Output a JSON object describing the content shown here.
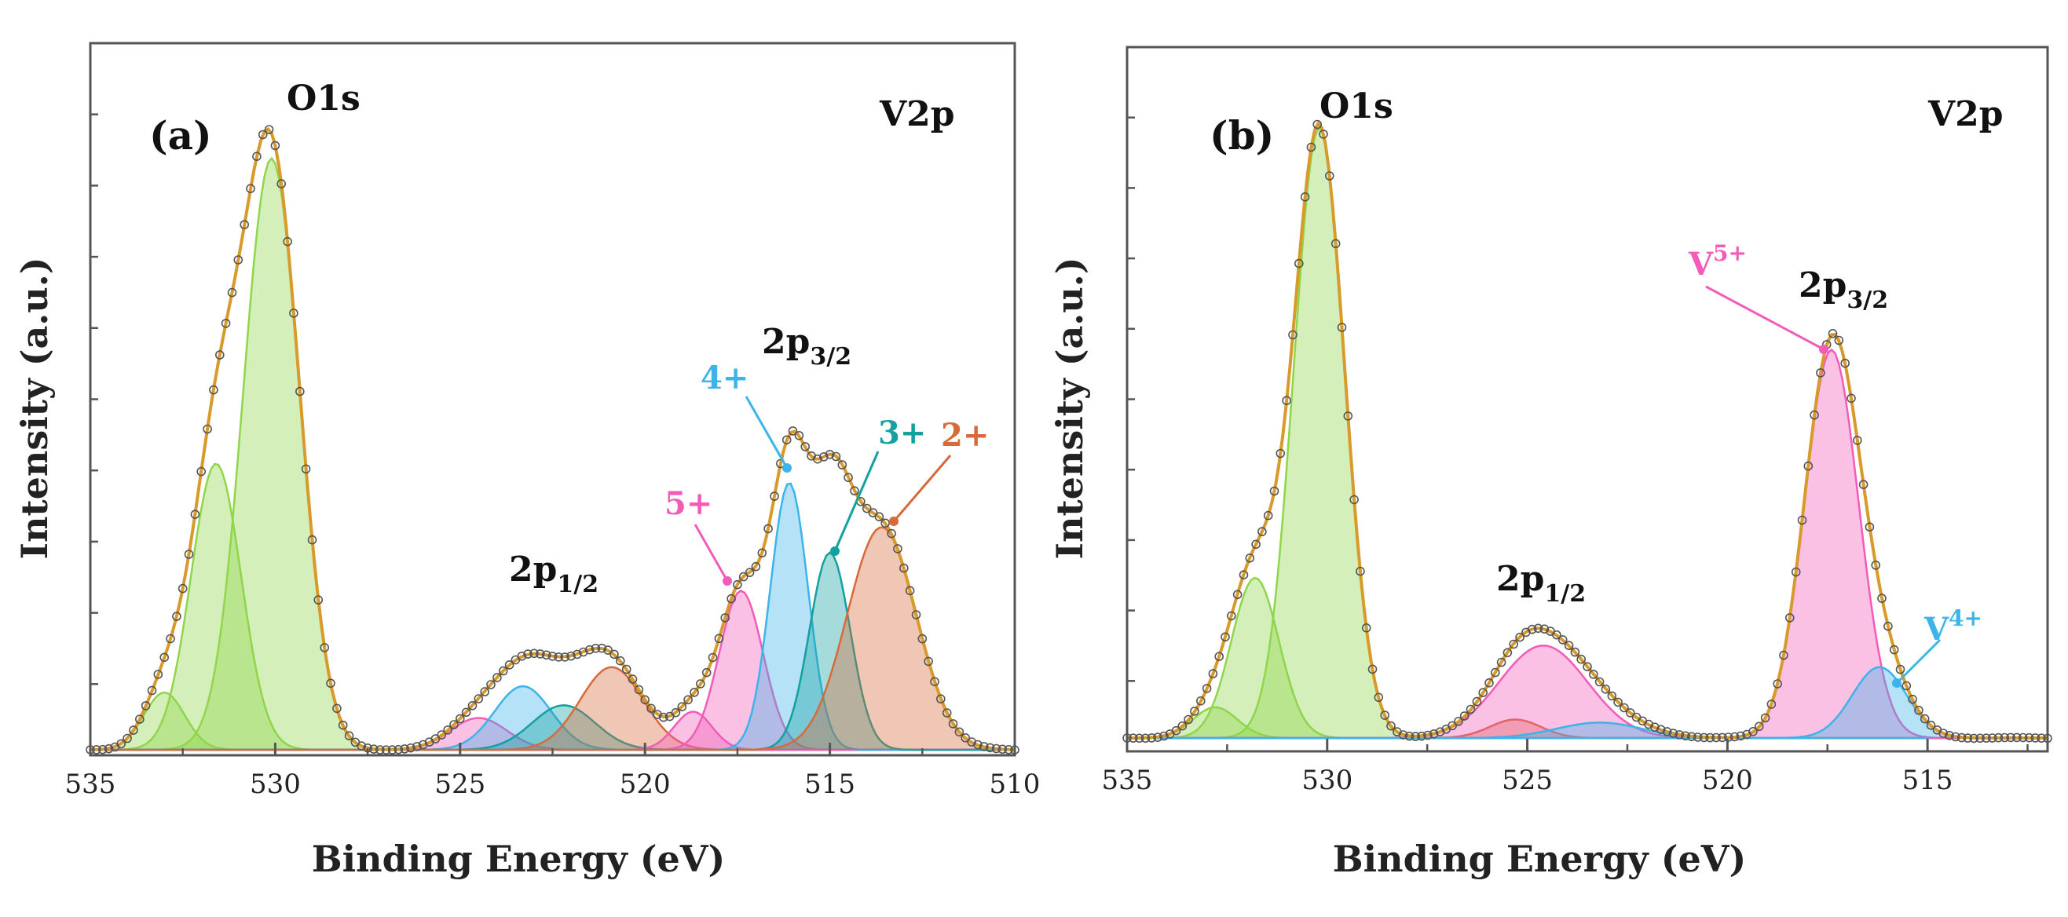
{
  "colors": {
    "o1s": "#8fd64a",
    "v5": "#f25cb8",
    "v4": "#3cb4ea",
    "v3": "#12a0a0",
    "v2": "#d86a3a",
    "envelope": "#d89a2a",
    "points": "#555555"
  },
  "chart_data": [
    {
      "type": "line",
      "panel_label": "(a)",
      "region_labels": {
        "o1s": "O1s",
        "v2p": "V2p"
      },
      "xlabel": "Binding Energy (eV)",
      "ylabel": "Intensity (a.u.)",
      "xlim": [
        535,
        510
      ],
      "ylim": [
        0,
        100
      ],
      "x_ticks": [
        "535",
        "530",
        "525",
        "520",
        "515",
        "510"
      ],
      "peak_labels": {
        "p32_main": "2p",
        "p32_sub": "3/2",
        "p12_main": "2p",
        "p12_sub": "1/2"
      },
      "ox_labels": {
        "v4": "4+",
        "v3": "3+",
        "v2": "2+",
        "v5": "5+"
      },
      "series": [
        {
          "name": "O1s a",
          "color_key": "o1s",
          "center": 533.0,
          "height": 9,
          "fwhm": 1.3
        },
        {
          "name": "O1s b",
          "color_key": "o1s",
          "center": 531.6,
          "height": 45,
          "fwhm": 1.6
        },
        {
          "name": "O1s c",
          "color_key": "o1s",
          "center": 530.1,
          "height": 93,
          "fwhm": 1.8
        },
        {
          "name": "V5+ 2p1/2",
          "color_key": "v5",
          "center": 524.5,
          "height": 5,
          "fwhm": 1.8
        },
        {
          "name": "V4+ 2p1/2",
          "color_key": "v4",
          "center": 523.3,
          "height": 10,
          "fwhm": 1.8
        },
        {
          "name": "V3+ 2p1/2",
          "color_key": "v3",
          "center": 522.2,
          "height": 7,
          "fwhm": 2.0
        },
        {
          "name": "V2+ 2p1/2",
          "color_key": "v2",
          "center": 520.9,
          "height": 13,
          "fwhm": 2.0
        },
        {
          "name": "V5+ extra",
          "color_key": "v5",
          "center": 518.7,
          "height": 6,
          "fwhm": 1.2
        },
        {
          "name": "V5+ 2p3/2",
          "color_key": "v5",
          "center": 517.4,
          "height": 25,
          "fwhm": 1.4
        },
        {
          "name": "V4+ 2p3/2",
          "color_key": "v4",
          "center": 516.1,
          "height": 42,
          "fwhm": 1.2
        },
        {
          "name": "V3+ 2p3/2",
          "color_key": "v3",
          "center": 515.0,
          "height": 31,
          "fwhm": 1.3
        },
        {
          "name": "V2+ 2p3/2",
          "color_key": "v2",
          "center": 513.6,
          "height": 35,
          "fwhm": 2.2
        }
      ]
    },
    {
      "type": "line",
      "panel_label": "(b)",
      "region_labels": {
        "o1s": "O1s",
        "v2p": "V2p"
      },
      "xlabel": "Binding Energy (eV)",
      "ylabel": "Intensity (a.u.)",
      "xlim": [
        535,
        512
      ],
      "ylim": [
        0,
        100
      ],
      "x_ticks": [
        "535",
        "530",
        "525",
        "520",
        "515"
      ],
      "peak_labels": {
        "p32_main": "2p",
        "p32_sub": "3/2",
        "p12_main": "2p",
        "p12_sub": "1/2"
      },
      "ox_labels": {
        "v5_main": "V",
        "v5_sup": "5+",
        "v4_main": "V",
        "v4_sup": "4+"
      },
      "series": [
        {
          "name": "O1s a",
          "color_key": "o1s",
          "center": 532.8,
          "height": 5,
          "fwhm": 1.3
        },
        {
          "name": "O1s b",
          "color_key": "o1s",
          "center": 531.8,
          "height": 26,
          "fwhm": 1.4
        },
        {
          "name": "O1s c",
          "color_key": "o1s",
          "center": 530.2,
          "height": 99,
          "fwhm": 1.5
        },
        {
          "name": "V5+ 2p1/2 (minor)",
          "color_key": "v2",
          "center": 525.3,
          "height": 3,
          "fwhm": 1.5
        },
        {
          "name": "V5+ 2p1/2",
          "color_key": "v5",
          "center": 524.6,
          "height": 15,
          "fwhm": 2.6
        },
        {
          "name": "V4+ 2p1/2",
          "color_key": "v4",
          "center": 523.2,
          "height": 2.5,
          "fwhm": 2.5
        },
        {
          "name": "V5+ 2p3/2",
          "color_key": "v5",
          "center": 517.4,
          "height": 63,
          "fwhm": 1.6
        },
        {
          "name": "V4+ 2p3/2",
          "color_key": "v4",
          "center": 516.2,
          "height": 11.5,
          "fwhm": 1.6
        }
      ]
    }
  ]
}
